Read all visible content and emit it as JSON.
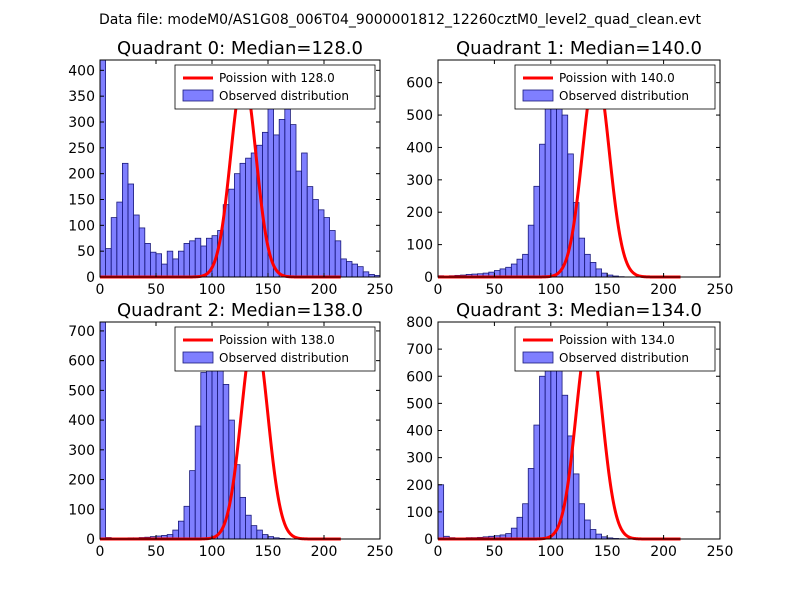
{
  "figure": {
    "suptitle": "Data file: modeM0/AS1G08_006T04_9000001812_12260cztM0_level2_quad_clean.evt"
  },
  "chart_data": [
    {
      "type": "bar",
      "title": "Quadrant 0: Median=128.0",
      "xlim": [
        0,
        250
      ],
      "ylim": [
        0,
        420
      ],
      "xticks": [
        0,
        50,
        100,
        150,
        200,
        250
      ],
      "yticks": [
        0,
        50,
        100,
        150,
        200,
        250,
        300,
        350,
        400
      ],
      "legend": [
        "Poission with 128.0",
        "Observed distribution"
      ],
      "legend_position": "top-right",
      "poisson_mean": 128.0,
      "poisson_peak": 388,
      "hist_bin_width": 5,
      "hist_counts": [
        420,
        55,
        115,
        145,
        220,
        180,
        120,
        95,
        65,
        48,
        45,
        25,
        50,
        35,
        50,
        65,
        70,
        75,
        60,
        75,
        80,
        90,
        140,
        170,
        200,
        220,
        230,
        240,
        255,
        280,
        350,
        275,
        305,
        325,
        295,
        205,
        240,
        175,
        150,
        130,
        115,
        90,
        70,
        35,
        30,
        25,
        20,
        10,
        5,
        3,
        0
      ]
    },
    {
      "type": "bar",
      "title": "Quadrant 1: Median=140.0",
      "xlim": [
        0,
        250
      ],
      "ylim": [
        0,
        670
      ],
      "xticks": [
        0,
        50,
        100,
        150,
        200,
        250
      ],
      "yticks": [
        0,
        100,
        200,
        300,
        400,
        500,
        600
      ],
      "legend": [
        "Poission with 140.0",
        "Observed distribution"
      ],
      "legend_position": "top-right",
      "poisson_mean": 140.0,
      "poisson_peak": 640,
      "hist_bin_width": 5,
      "hist_counts": [
        4,
        3,
        4,
        5,
        6,
        8,
        9,
        10,
        12,
        15,
        20,
        25,
        30,
        40,
        55,
        70,
        160,
        280,
        410,
        540,
        620,
        590,
        500,
        380,
        230,
        120,
        70,
        45,
        25,
        12,
        6,
        3,
        1,
        0,
        0,
        0,
        0,
        0,
        0,
        0,
        0,
        0,
        0,
        0,
        0,
        0,
        0,
        0,
        0,
        0
      ]
    },
    {
      "type": "bar",
      "title": "Quadrant 2: Median=138.0",
      "xlim": [
        0,
        250
      ],
      "ylim": [
        0,
        730
      ],
      "xticks": [
        0,
        50,
        100,
        150,
        200,
        250
      ],
      "yticks": [
        0,
        100,
        200,
        300,
        400,
        500,
        600,
        700
      ],
      "legend": [
        "Poission with 138.0",
        "Observed distribution"
      ],
      "legend_position": "top-right",
      "poisson_mean": 138.0,
      "poisson_peak": 700,
      "hist_bin_width": 5,
      "hist_counts": [
        730,
        5,
        2,
        3,
        3,
        4,
        4,
        5,
        6,
        8,
        10,
        12,
        15,
        30,
        60,
        110,
        230,
        380,
        560,
        680,
        700,
        620,
        520,
        400,
        250,
        140,
        80,
        45,
        30,
        15,
        8,
        4,
        2,
        1,
        0,
        0,
        0,
        0,
        0,
        0,
        0,
        0,
        0,
        0,
        0,
        0,
        0,
        0,
        0,
        0
      ]
    },
    {
      "type": "bar",
      "title": "Quadrant 3: Median=134.0",
      "xlim": [
        0,
        250
      ],
      "ylim": [
        0,
        800
      ],
      "xticks": [
        0,
        50,
        100,
        150,
        200,
        250
      ],
      "yticks": [
        0,
        100,
        200,
        300,
        400,
        500,
        600,
        700,
        800
      ],
      "legend": [
        "Poission with 134.0",
        "Observed distribution"
      ],
      "legend_position": "top-right",
      "poisson_mean": 134.0,
      "poisson_peak": 760,
      "hist_bin_width": 5,
      "hist_counts": [
        200,
        10,
        5,
        4,
        4,
        5,
        5,
        6,
        8,
        10,
        12,
        15,
        20,
        40,
        80,
        130,
        260,
        420,
        600,
        730,
        750,
        660,
        530,
        380,
        240,
        130,
        70,
        35,
        18,
        8,
        4,
        2,
        1,
        0,
        0,
        0,
        0,
        0,
        0,
        0,
        0,
        0,
        0,
        0,
        0,
        0,
        0,
        0,
        0,
        0
      ]
    }
  ]
}
